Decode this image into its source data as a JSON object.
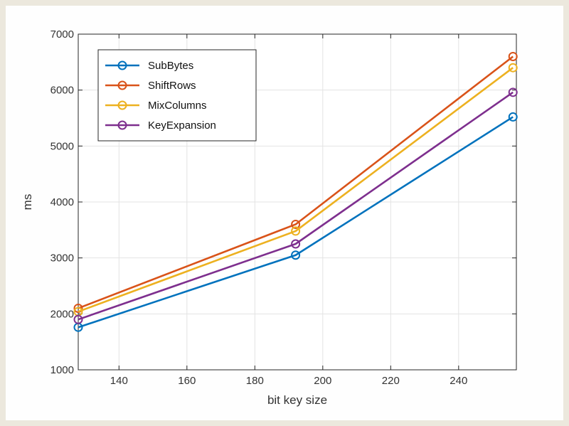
{
  "chart_data": {
    "type": "line",
    "title": "",
    "xlabel": "bit key size",
    "ylabel": "ms",
    "x": [
      128,
      192,
      256
    ],
    "xlim": [
      128,
      257
    ],
    "ylim": [
      1000,
      7000
    ],
    "xticks": [
      140,
      160,
      180,
      200,
      220,
      240
    ],
    "yticks": [
      1000,
      2000,
      3000,
      4000,
      5000,
      6000,
      7000
    ],
    "grid": true,
    "legend_position": "top-left",
    "marker": "circle",
    "series": [
      {
        "name": "SubBytes",
        "color": "#0072bd",
        "values": [
          1760,
          3050,
          5520
        ]
      },
      {
        "name": "ShiftRows",
        "color": "#d95319",
        "values": [
          2100,
          3600,
          6600
        ]
      },
      {
        "name": "MixColumns",
        "color": "#edb120",
        "values": [
          2040,
          3480,
          6400
        ]
      },
      {
        "name": "KeyExpansion",
        "color": "#7e2f8e",
        "values": [
          1900,
          3250,
          5960
        ]
      }
    ]
  }
}
